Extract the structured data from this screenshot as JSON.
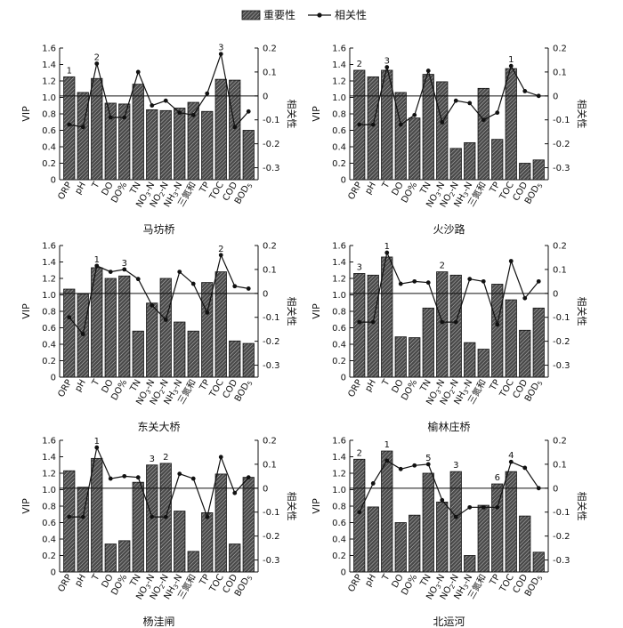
{
  "legend": {
    "bar_label": "重要性",
    "line_label": "相关性"
  },
  "colors": {
    "ink": "#111111",
    "bar_fill": "#555555",
    "hatch": "#c8c8c8"
  },
  "axes": {
    "left_label": "VIP",
    "right_label": "相关性",
    "left_ticks": [
      "0",
      "0.2",
      "0.4",
      "0.6",
      "0.8",
      "1.0",
      "1.2",
      "1.4",
      "1.6"
    ],
    "right_ticks": [
      "0.2",
      "0.1",
      "0",
      "-0.1",
      "-0.2",
      "-0.3"
    ]
  },
  "chart_data": [
    {
      "type": "bar",
      "title": "马坊桥",
      "categories": [
        "ORP",
        "pH",
        "T",
        "DO",
        "DO%",
        "TN",
        "NO3-N",
        "NO2-N",
        "NH3-N",
        "三氮和",
        "TP",
        "TOC",
        "COD",
        "BOD5"
      ],
      "series": [
        {
          "name": "重要性",
          "axis": "left",
          "values": [
            1.25,
            1.06,
            1.23,
            0.93,
            0.92,
            1.16,
            0.85,
            0.84,
            0.87,
            0.94,
            0.83,
            1.22,
            1.21,
            0.6
          ]
        },
        {
          "name": "相关性",
          "axis": "right",
          "values": [
            -0.12,
            -0.13,
            0.135,
            -0.09,
            -0.09,
            0.1,
            -0.04,
            -0.02,
            -0.07,
            -0.08,
            0.01,
            0.175,
            -0.13,
            -0.065
          ]
        }
      ],
      "rank_labels": [
        {
          "index": 0,
          "text": "1"
        },
        {
          "index": 2,
          "text": "2"
        },
        {
          "index": 11,
          "text": "3"
        }
      ],
      "ylim": [
        0,
        1.6
      ],
      "y2lim": [
        -0.35,
        0.2
      ]
    },
    {
      "type": "bar",
      "title": "火沙路",
      "categories": [
        "ORP",
        "pH",
        "T",
        "DO",
        "DO%",
        "TN",
        "NO3-N",
        "NO2-N",
        "NH3-N",
        "三氮和",
        "TP",
        "TOC",
        "COD",
        "BOD5"
      ],
      "series": [
        {
          "name": "重要性",
          "axis": "left",
          "values": [
            1.33,
            1.25,
            1.33,
            1.06,
            0.75,
            1.28,
            1.19,
            0.38,
            0.45,
            1.11,
            0.49,
            1.35,
            0.2,
            0.24
          ]
        },
        {
          "name": "相关性",
          "axis": "right",
          "values": [
            -0.12,
            -0.12,
            0.12,
            -0.12,
            -0.08,
            0.105,
            -0.11,
            -0.02,
            -0.03,
            -0.1,
            -0.07,
            0.125,
            0.02,
            0.0
          ]
        }
      ],
      "rank_labels": [
        {
          "index": 0,
          "text": "2"
        },
        {
          "index": 2,
          "text": "3"
        },
        {
          "index": 11,
          "text": "1"
        }
      ],
      "ylim": [
        0,
        1.6
      ],
      "y2lim": [
        -0.35,
        0.2
      ]
    },
    {
      "type": "bar",
      "title": "东关大桥",
      "categories": [
        "ORP",
        "pH",
        "T",
        "DO",
        "DO%",
        "TN",
        "NO3-N",
        "NO2-N",
        "NH3-N",
        "三氮和",
        "TP",
        "TOC",
        "COD",
        "BOD5"
      ],
      "series": [
        {
          "name": "重要性",
          "axis": "left",
          "values": [
            1.07,
            1.01,
            1.33,
            1.2,
            1.23,
            0.56,
            0.9,
            1.2,
            0.67,
            0.56,
            1.15,
            1.28,
            0.44,
            0.41
          ]
        },
        {
          "name": "相关性",
          "axis": "right",
          "values": [
            -0.1,
            -0.17,
            0.115,
            0.09,
            0.1,
            0.06,
            -0.05,
            -0.11,
            0.09,
            0.04,
            -0.08,
            0.16,
            0.03,
            0.02
          ]
        }
      ],
      "rank_labels": [
        {
          "index": 2,
          "text": "1"
        },
        {
          "index": 4,
          "text": "3"
        },
        {
          "index": 11,
          "text": "2"
        }
      ],
      "ylim": [
        0,
        1.6
      ],
      "y2lim": [
        -0.35,
        0.2
      ]
    },
    {
      "type": "bar",
      "title": "榆林庄桥",
      "categories": [
        "ORP",
        "pH",
        "T",
        "DO",
        "DO%",
        "TN",
        "NO3-N",
        "NO2-N",
        "NH3-N",
        "三氮和",
        "TP",
        "TOC",
        "COD",
        "BOD5"
      ],
      "series": [
        {
          "name": "重要性",
          "axis": "left",
          "values": [
            1.26,
            1.24,
            1.46,
            0.49,
            0.48,
            0.84,
            1.28,
            1.24,
            0.42,
            0.34,
            1.13,
            0.94,
            0.57,
            0.84
          ]
        },
        {
          "name": "相关性",
          "axis": "right",
          "values": [
            -0.12,
            -0.12,
            0.17,
            0.04,
            0.05,
            0.045,
            -0.12,
            -0.12,
            0.06,
            0.05,
            -0.13,
            0.135,
            -0.02,
            0.05
          ]
        }
      ],
      "rank_labels": [
        {
          "index": 0,
          "text": "3"
        },
        {
          "index": 2,
          "text": "1"
        },
        {
          "index": 6,
          "text": "2"
        }
      ],
      "ylim": [
        0,
        1.6
      ],
      "y2lim": [
        -0.35,
        0.2
      ]
    },
    {
      "type": "bar",
      "title": "杨洼闸",
      "categories": [
        "ORP",
        "pH",
        "T",
        "DO",
        "DO%",
        "TN",
        "NO3-N",
        "NO2-N",
        "NH3-N",
        "三氮和",
        "TP",
        "TOC",
        "COD",
        "BOD5"
      ],
      "series": [
        {
          "name": "重要性",
          "axis": "left",
          "values": [
            1.23,
            1.03,
            1.38,
            0.34,
            0.38,
            1.09,
            1.3,
            1.32,
            0.74,
            0.25,
            0.72,
            1.19,
            0.34,
            1.15
          ]
        },
        {
          "name": "相关性",
          "axis": "right",
          "values": [
            -0.12,
            -0.12,
            0.17,
            0.04,
            0.05,
            0.045,
            -0.12,
            -0.12,
            0.06,
            0.04,
            -0.12,
            0.13,
            -0.02,
            0.045
          ]
        }
      ],
      "rank_labels": [
        {
          "index": 2,
          "text": "1"
        },
        {
          "index": 6,
          "text": "3"
        },
        {
          "index": 7,
          "text": "2"
        }
      ],
      "ylim": [
        0,
        1.6
      ],
      "y2lim": [
        -0.35,
        0.2
      ]
    },
    {
      "type": "bar",
      "title": "北运河",
      "categories": [
        "ORP",
        "pH",
        "T",
        "DO",
        "DO%",
        "TN",
        "NO3-N",
        "NO2-N",
        "NH3-N",
        "三氮和",
        "TP",
        "TOC",
        "COD",
        "BOD5"
      ],
      "series": [
        {
          "name": "重要性",
          "axis": "left",
          "values": [
            1.37,
            0.79,
            1.47,
            0.6,
            0.69,
            1.2,
            0.85,
            1.22,
            0.2,
            0.81,
            1.07,
            1.22,
            0.68,
            0.24
          ]
        },
        {
          "name": "相关性",
          "axis": "right",
          "values": [
            -0.1,
            0.02,
            0.115,
            0.08,
            0.095,
            0.1,
            -0.05,
            -0.12,
            -0.08,
            -0.08,
            -0.08,
            0.11,
            0.085,
            0.0
          ]
        }
      ],
      "rank_labels": [
        {
          "index": 0,
          "text": "2"
        },
        {
          "index": 2,
          "text": "1"
        },
        {
          "index": 5,
          "text": "5"
        },
        {
          "index": 7,
          "text": "3"
        },
        {
          "index": 10,
          "text": "6"
        },
        {
          "index": 11,
          "text": "4"
        }
      ],
      "ylim": [
        0,
        1.6
      ],
      "y2lim": [
        -0.35,
        0.2
      ]
    }
  ]
}
